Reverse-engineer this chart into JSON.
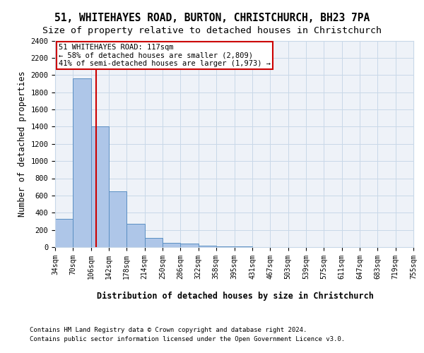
{
  "title1": "51, WHITEHAYES ROAD, BURTON, CHRISTCHURCH, BH23 7PA",
  "title2": "Size of property relative to detached houses in Christchurch",
  "xlabel": "Distribution of detached houses by size in Christchurch",
  "ylabel": "Number of detached properties",
  "footer1": "Contains HM Land Registry data © Crown copyright and database right 2024.",
  "footer2": "Contains public sector information licensed under the Open Government Licence v3.0.",
  "bin_edges": [
    34,
    70,
    106,
    142,
    178,
    214,
    250,
    286,
    322,
    358,
    395,
    431,
    467,
    503,
    539,
    575,
    611,
    647,
    683,
    719,
    755
  ],
  "bar_heights": [
    325,
    1960,
    1400,
    645,
    270,
    105,
    50,
    38,
    20,
    8,
    5,
    3,
    2,
    2,
    1,
    1,
    1,
    0,
    0,
    0
  ],
  "bar_color": "#aec6e8",
  "bar_edge_color": "#5a8fc2",
  "vline_x": 117,
  "vline_color": "#cc0000",
  "annotation_text": "51 WHITEHAYES ROAD: 117sqm\n← 58% of detached houses are smaller (2,809)\n41% of semi-detached houses are larger (1,973) →",
  "annotation_box_color": "#cc0000",
  "ylim": [
    0,
    2400
  ],
  "grid_color": "#c8d8e8",
  "background_color": "#eef2f8",
  "tick_label_fontsize": 7,
  "title1_fontsize": 10.5,
  "title2_fontsize": 9.5
}
